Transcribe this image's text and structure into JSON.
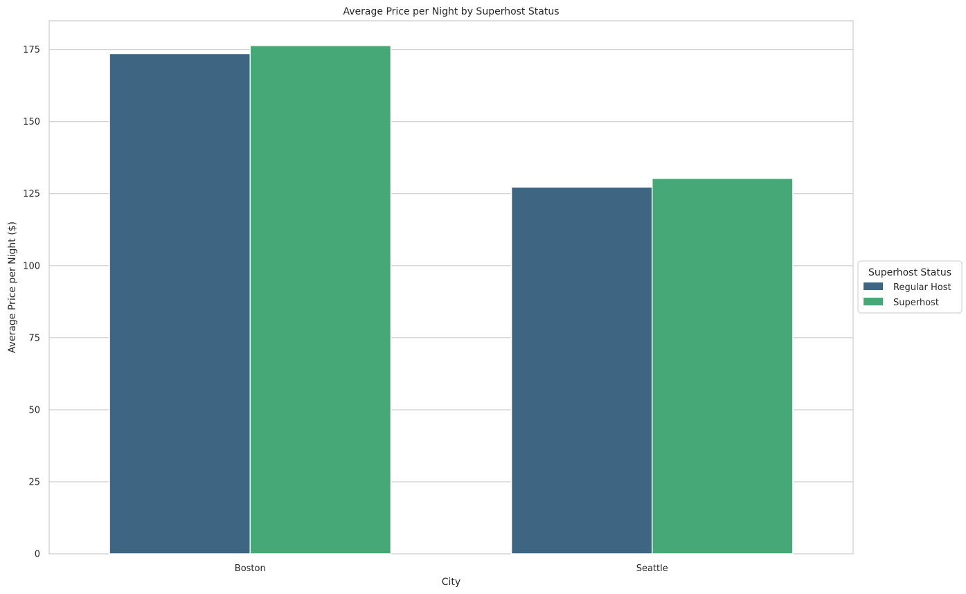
{
  "chart_data": {
    "type": "bar",
    "title": "Average Price per Night by Superhost Status",
    "xlabel": "City",
    "ylabel": "Average Price per Night ($)",
    "categories": [
      "Boston",
      "Seattle"
    ],
    "series": [
      {
        "name": "Regular Host",
        "color": "#3e6581",
        "values": [
          173.6,
          127.3
        ]
      },
      {
        "name": "Superhost",
        "color": "#46a777",
        "values": [
          176.4,
          130.3
        ]
      }
    ],
    "ylim": [
      0,
      185
    ],
    "yticks": [
      0,
      25,
      50,
      75,
      100,
      125,
      150,
      175
    ],
    "grid": true,
    "legend": {
      "title": "Superhost Status",
      "placement": "center-right outside"
    }
  }
}
